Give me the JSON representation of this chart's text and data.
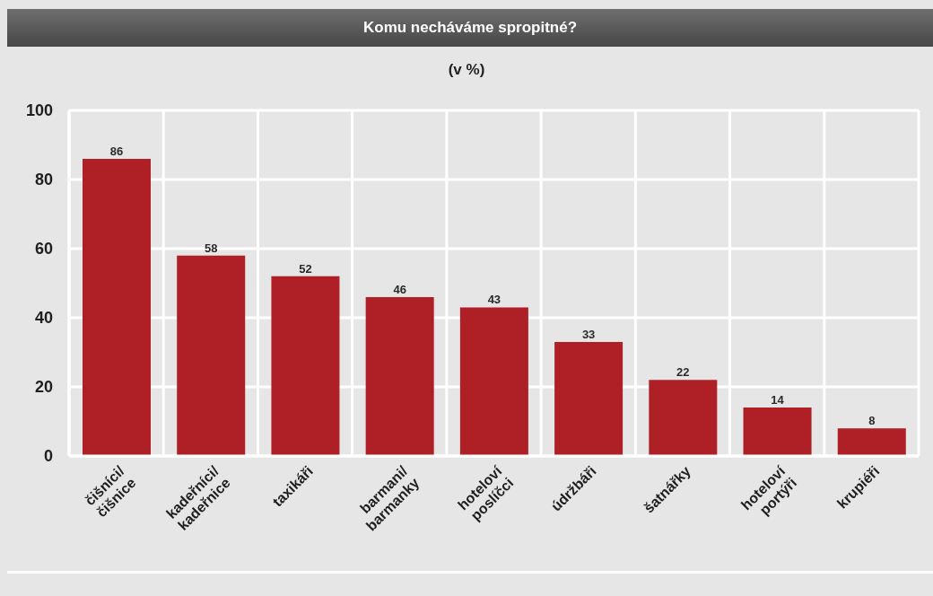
{
  "chart_data": {
    "type": "bar",
    "title": "Komu necháváme spropitné?",
    "subtitle": "(v %)",
    "categories": [
      "čišníci/\nčišnice",
      "kadeřníci/\nkadeřnice",
      "taxikáři",
      "barmani/\nbarmanky",
      "hoteloví\nposlíčci",
      "údržbáři",
      "šatnářky",
      "hoteloví\nportýři",
      "krupiéři"
    ],
    "values": [
      86,
      58,
      52,
      46,
      43,
      33,
      22,
      14,
      8
    ],
    "color": "#ae1f26",
    "ylim": [
      0,
      100
    ],
    "yticks": [
      0,
      20,
      40,
      60,
      80,
      100
    ],
    "grid": true,
    "data_labels": true
  }
}
